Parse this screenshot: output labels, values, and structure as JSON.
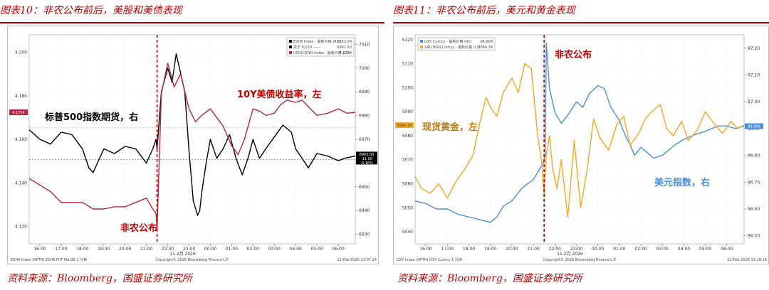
{
  "left": {
    "figure_title": "图表10：非农公布前后，美股和美债表现",
    "source": "资料来源：Bloomberg，国盛证券研究所",
    "legend": [
      {
        "label": "ESH6 Index - 最新价格 (R1)",
        "value": "6963.00",
        "color": "#000000"
      },
      {
        "label": "高于 02/10 ------",
        "value": "6961.50",
        "color": "#000000"
      },
      {
        "label": "USGG10YR Index - 最新价格 (L1)",
        "value": "4.1724",
        "color": "#b4263e"
      }
    ],
    "annotations": {
      "spx": "标普500指数期货，右",
      "ust": "10Y美债收益率，左",
      "nfp": "非农公布"
    },
    "price_tags": {
      "left": "4.1724",
      "right_1": "6963.00",
      "right_2": "-11.00",
      "right_3": "-0.16%"
    },
    "footer_left": "ESH6 Index (APTH) ESH6 FUT  Mar26  1 分钟",
    "footer_center": "Copyright© 2026 Bloomberg Finance L.P.",
    "footer_right": "12-Feb-2026 13:07:24",
    "date_label": "11.2月 2026",
    "colors": {
      "spx": "#000000",
      "ust": "#b4263e",
      "nfp_line": "#c00000"
    }
  },
  "right": {
    "figure_title": "图表11：非农公布前后，美元和黄金表现",
    "source": "资料来源：Bloomberg，国盛证券研究所",
    "legend": [
      {
        "label": "DXY Curncy - 最新价格 (R1)",
        "value": "96.909",
        "color": "#4a90d9"
      },
      {
        "label": "XAU BGN Curncy - 最新价格 (L1)",
        "value": "5084.39",
        "color": "#f5a623"
      }
    ],
    "annotations": {
      "gold": "现货黄金，左",
      "dxy": "美元指数，右",
      "nfp": "非农公布"
    },
    "price_tags": {
      "left": "5084.39",
      "right": "96.909"
    },
    "footer_left": "DXY Index (APTH) DXY Curncy  1 分钟",
    "footer_center": "Copyright© 2026 Bloomberg Finance L.P.",
    "footer_right": "12-Feb-2026 13:19:16",
    "date_label": "11.2月 2026",
    "colors": {
      "dxy": "#4a90d9",
      "gold": "#f5a623",
      "nfp_line": "#c00000"
    }
  },
  "chart_data": [
    {
      "type": "line",
      "title": "",
      "x_ticks": [
        "16:00",
        "17:00",
        "18:00",
        "19:00",
        "20:00",
        "21:00",
        "22:00",
        "23:00",
        "00:00",
        "01:00",
        "02:00",
        "03:00",
        "04:00",
        "05:00",
        "06:00"
      ],
      "x_range": [
        15.5,
        30.8
      ],
      "event_x": 21.5,
      "y_left": {
        "ticks": [
          "4.120",
          "4.140",
          "4.160",
          "4.180",
          "4.200"
        ],
        "range": [
          4.112,
          4.208
        ]
      },
      "y_right": {
        "ticks": [
          "6930",
          "6940",
          "6950",
          "6960",
          "6970",
          "6980",
          "6990",
          "7000",
          "7010"
        ],
        "range": [
          6926,
          7014
        ]
      },
      "reference_lines": {
        "previous_close": 6961.5
      },
      "series": [
        {
          "name": "ESH6 Index",
          "axis": "right",
          "x": [
            15.5,
            16.0,
            16.5,
            17.0,
            17.5,
            18.0,
            18.3,
            18.5,
            18.8,
            19.0,
            19.5,
            20.0,
            20.5,
            21.0,
            21.3,
            21.45,
            21.5,
            21.7,
            22.0,
            22.2,
            22.4,
            22.6,
            22.8,
            23.0,
            23.2,
            23.4,
            23.5,
            23.6,
            23.8,
            24.0,
            24.3,
            24.6,
            24.9,
            25.2,
            25.5,
            25.8,
            26.0,
            26.3,
            26.6,
            27.0,
            27.4,
            27.8,
            28.0,
            28.3,
            28.6,
            29.0,
            29.5,
            30.0,
            30.3,
            30.8
          ],
          "y": [
            6974,
            6970,
            6968,
            6973,
            6972,
            6966,
            6958,
            6956,
            6962,
            6966,
            6964,
            6967,
            6966,
            6960,
            6966,
            6970,
            6966,
            6990,
            7000,
            6994,
            7006,
            6998,
            6990,
            6965,
            6944,
            6938,
            6940,
            6948,
            6960,
            6970,
            6962,
            6966,
            6972,
            6962,
            6955,
            6963,
            6970,
            6962,
            6966,
            6971,
            6976,
            6973,
            6966,
            6962,
            6958,
            6964,
            6963,
            6961,
            6962,
            6963
          ]
        },
        {
          "name": "USGG10YR Index",
          "axis": "left",
          "x": [
            15.5,
            16.0,
            16.5,
            17.0,
            17.5,
            18.0,
            18.5,
            19.0,
            19.5,
            20.0,
            20.5,
            21.0,
            21.3,
            21.45,
            21.5,
            21.7,
            22.0,
            22.3,
            22.6,
            23.0,
            23.3,
            23.6,
            24.0,
            24.3,
            24.6,
            25.0,
            25.3,
            25.6,
            26.0,
            26.3,
            26.6,
            27.0,
            27.3,
            27.6,
            28.0,
            28.3,
            28.6,
            29.0,
            29.5,
            30.0,
            30.4,
            30.8
          ],
          "y": [
            4.142,
            4.139,
            4.136,
            4.131,
            4.131,
            4.131,
            4.128,
            4.128,
            4.129,
            4.129,
            4.131,
            4.133,
            4.128,
            4.126,
            4.119,
            4.181,
            4.195,
            4.184,
            4.19,
            4.174,
            4.168,
            4.171,
            4.174,
            4.17,
            4.166,
            4.157,
            4.153,
            4.16,
            4.174,
            4.173,
            4.171,
            4.172,
            4.176,
            4.178,
            4.177,
            4.178,
            4.175,
            4.171,
            4.172,
            4.174,
            4.172,
            4.1724
          ]
        }
      ]
    },
    {
      "type": "line",
      "title": "",
      "x_ticks": [
        "16:00",
        "17:00",
        "18:00",
        "19:00",
        "20:00",
        "21:00",
        "22:00",
        "23:00",
        "00:00",
        "01:00",
        "02:00",
        "03:00",
        "04:00",
        "05:00",
        "06:00"
      ],
      "x_range": [
        15.5,
        30.8
      ],
      "event_x": 21.5,
      "y_left": {
        "ticks": [
          "5040",
          "5050",
          "5060",
          "5070",
          "5080",
          "5090",
          "5100",
          "5110",
          "5120"
        ],
        "range": [
          5035,
          5122
        ]
      },
      "y_right": {
        "ticks": [
          "96.50",
          "96.60",
          "96.70",
          "96.80",
          "96.90",
          "97.00",
          "97.10",
          "97.20"
        ],
        "range": [
          96.47,
          97.25
        ]
      },
      "series": [
        {
          "name": "DXY Curncy",
          "axis": "right",
          "x": [
            15.5,
            16.0,
            16.5,
            17.0,
            17.5,
            18.0,
            18.5,
            19.0,
            19.3,
            19.6,
            20.0,
            20.5,
            21.0,
            21.3,
            21.45,
            21.55,
            21.6,
            21.75,
            22.0,
            22.3,
            22.6,
            23.0,
            23.3,
            23.6,
            24.0,
            24.3,
            24.6,
            25.0,
            25.3,
            25.5,
            25.7,
            26.0,
            26.3,
            26.6,
            27.0,
            27.3,
            27.6,
            28.0,
            28.3,
            28.6,
            29.0,
            29.3,
            29.6,
            30.0,
            30.4,
            30.8
          ],
          "y": [
            96.63,
            96.62,
            96.6,
            96.6,
            96.58,
            96.57,
            96.56,
            96.55,
            96.57,
            96.61,
            96.63,
            96.68,
            96.71,
            96.75,
            96.77,
            96.8,
            97.22,
            97.05,
            96.96,
            96.92,
            96.95,
            97.0,
            96.98,
            97.03,
            97.06,
            97.05,
            96.98,
            96.93,
            96.87,
            96.84,
            96.8,
            96.83,
            96.81,
            96.79,
            96.8,
            96.82,
            96.84,
            96.86,
            96.87,
            96.88,
            96.89,
            96.9,
            96.91,
            96.91,
            96.9,
            96.909
          ]
        },
        {
          "name": "XAU BGN Curncy",
          "axis": "left",
          "x": [
            15.5,
            15.8,
            16.2,
            16.6,
            17.0,
            17.4,
            17.8,
            18.2,
            18.5,
            18.8,
            19.0,
            19.3,
            19.6,
            20.0,
            20.3,
            20.6,
            20.9,
            21.2,
            21.4,
            21.5,
            21.6,
            21.75,
            21.9,
            22.1,
            22.3,
            22.6,
            22.9,
            23.2,
            23.5,
            23.8,
            24.1,
            24.5,
            24.9,
            25.2,
            25.5,
            25.9,
            26.2,
            26.5,
            26.9,
            27.2,
            27.5,
            27.9,
            28.2,
            28.6,
            29.0,
            29.4,
            29.8,
            30.2,
            30.5,
            30.8
          ],
          "y": [
            5063,
            5058,
            5056,
            5060,
            5054,
            5061,
            5066,
            5072,
            5085,
            5096,
            5092,
            5088,
            5098,
            5104,
            5098,
            5110,
            5108,
            5080,
            5068,
            5055,
            5072,
            5080,
            5066,
            5058,
            5070,
            5046,
            5078,
            5050,
            5066,
            5087,
            5079,
            5074,
            5085,
            5088,
            5076,
            5081,
            5087,
            5090,
            5093,
            5083,
            5080,
            5086,
            5078,
            5082,
            5090,
            5085,
            5081,
            5086,
            5083,
            5084.39
          ]
        }
      ]
    }
  ]
}
